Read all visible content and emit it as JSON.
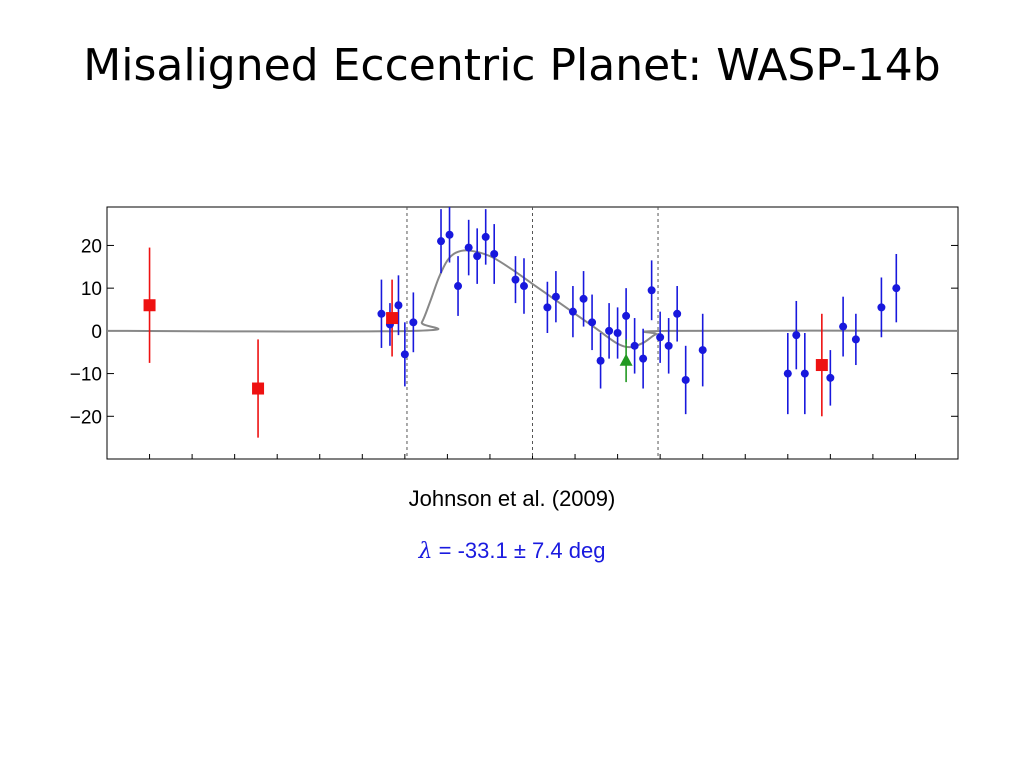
{
  "slide": {
    "title": "Misaligned Eccentric Planet: WASP-14b",
    "citation": "Johnson et al. (2009)",
    "result": {
      "symbol": "λ",
      "text": " = -33.1 ± 7.4 deg"
    }
  },
  "chart_data": {
    "type": "scatter",
    "title": "",
    "xlabel": "",
    "ylabel": "",
    "xlim": [
      0,
      20
    ],
    "ylim": [
      -30,
      29
    ],
    "yticks": [
      20,
      10,
      0,
      -10,
      -20
    ],
    "ytick_labels": [
      "20",
      "10",
      "0",
      "−10",
      "−20"
    ],
    "xticks_minor": [
      1,
      2,
      3,
      4,
      5,
      6,
      7,
      8,
      9,
      10,
      11,
      12,
      13,
      14,
      15,
      16,
      17,
      18,
      19
    ],
    "vlines_dashed": [
      7.05,
      10.0,
      12.95
    ],
    "hline": 0,
    "grid": false,
    "series": [
      {
        "marker": "circle",
        "color": "#1818dd",
        "points": [
          {
            "x": 6.45,
            "y": 4,
            "err": 8
          },
          {
            "x": 6.65,
            "y": 1.5,
            "err": 5
          },
          {
            "x": 6.85,
            "y": 6,
            "err": 7
          },
          {
            "x": 7.0,
            "y": -5.5,
            "err": 7.5
          },
          {
            "x": 7.2,
            "y": 2,
            "err": 7
          },
          {
            "x": 7.85,
            "y": 21,
            "err": 7.5
          },
          {
            "x": 8.05,
            "y": 22.5,
            "err": 6.5
          },
          {
            "x": 8.25,
            "y": 10.5,
            "err": 7
          },
          {
            "x": 8.5,
            "y": 19.5,
            "err": 6.5
          },
          {
            "x": 8.7,
            "y": 17.5,
            "err": 6.5
          },
          {
            "x": 8.9,
            "y": 22,
            "err": 6.5
          },
          {
            "x": 9.1,
            "y": 18,
            "err": 7
          },
          {
            "x": 9.6,
            "y": 12,
            "err": 5.5
          },
          {
            "x": 9.8,
            "y": 10.5,
            "err": 6.5
          },
          {
            "x": 10.35,
            "y": 5.5,
            "err": 6
          },
          {
            "x": 10.55,
            "y": 8,
            "err": 6
          },
          {
            "x": 10.95,
            "y": 4.5,
            "err": 6
          },
          {
            "x": 11.2,
            "y": 7.5,
            "err": 6.5
          },
          {
            "x": 11.4,
            "y": 2,
            "err": 6.5
          },
          {
            "x": 11.6,
            "y": -7,
            "err": 6.5
          },
          {
            "x": 11.8,
            "y": 0,
            "err": 6.5
          },
          {
            "x": 12.0,
            "y": -0.5,
            "err": 6
          },
          {
            "x": 12.2,
            "y": 3.5,
            "err": 6.5
          },
          {
            "x": 12.4,
            "y": -3.5,
            "err": 6.5
          },
          {
            "x": 12.6,
            "y": -6.5,
            "err": 7
          },
          {
            "x": 12.8,
            "y": 9.5,
            "err": 7
          },
          {
            "x": 13.0,
            "y": -1.5,
            "err": 6
          },
          {
            "x": 13.2,
            "y": -3.5,
            "err": 6.5
          },
          {
            "x": 13.4,
            "y": 4,
            "err": 6.5
          },
          {
            "x": 13.6,
            "y": -11.5,
            "err": 8
          },
          {
            "x": 14.0,
            "y": -4.5,
            "err": 8.5
          },
          {
            "x": 16.0,
            "y": -10,
            "err": 9.5
          },
          {
            "x": 16.2,
            "y": -1,
            "err": 8
          },
          {
            "x": 16.4,
            "y": -10,
            "err": 9.5
          },
          {
            "x": 17.0,
            "y": -11,
            "err": 6.5
          },
          {
            "x": 17.3,
            "y": 1,
            "err": 7
          },
          {
            "x": 17.6,
            "y": -2,
            "err": 6
          },
          {
            "x": 18.2,
            "y": 5.5,
            "err": 7
          },
          {
            "x": 18.55,
            "y": 10,
            "err": 8
          }
        ]
      },
      {
        "marker": "square",
        "color": "#ee1111",
        "points": [
          {
            "x": 1.0,
            "y": 6,
            "err": 13.5
          },
          {
            "x": 3.55,
            "y": -13.5,
            "err": 11.5
          },
          {
            "x": 6.7,
            "y": 3,
            "err": 9
          },
          {
            "x": 16.8,
            "y": -8,
            "err": 12
          }
        ]
      },
      {
        "marker": "triangle",
        "color": "#229922",
        "points": [
          {
            "x": 12.2,
            "y": -7,
            "err": 5
          }
        ]
      }
    ],
    "model_curve": {
      "color": "#888888",
      "points": [
        [
          0,
          0
        ],
        [
          7.2,
          0
        ],
        [
          7.4,
          2
        ],
        [
          7.6,
          7
        ],
        [
          7.8,
          12.5
        ],
        [
          8.0,
          16.5
        ],
        [
          8.2,
          18.3
        ],
        [
          8.5,
          18.8
        ],
        [
          9.0,
          17.5
        ],
        [
          9.5,
          14.5
        ],
        [
          10.0,
          11
        ],
        [
          10.5,
          7.5
        ],
        [
          11.0,
          4
        ],
        [
          11.5,
          0.5
        ],
        [
          12.0,
          -3
        ],
        [
          12.3,
          -3.8
        ],
        [
          12.6,
          -2.8
        ],
        [
          12.9,
          -0.8
        ],
        [
          13.2,
          0
        ],
        [
          20,
          0
        ]
      ]
    }
  }
}
